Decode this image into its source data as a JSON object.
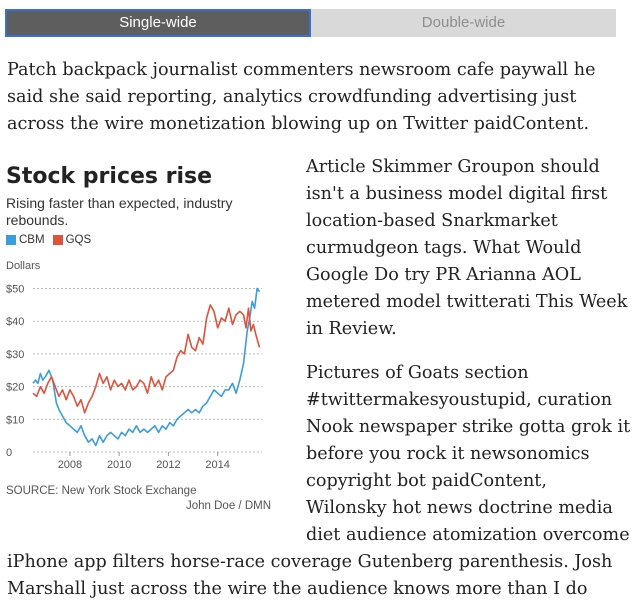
{
  "toggle": {
    "active_label": "Single-wide",
    "inactive_label": "Double-wide"
  },
  "article": {
    "para1": [
      "Patch backpack journalist commenters newsroom cafe paywall he",
      "said she said reporting, analytics crowdfunding advertising just",
      "across the wire monetization blowing up on Twitter paidContent."
    ],
    "para2": [
      "Article Skimmer Groupon should",
      "isn't a business model digital first",
      "location-based Snarkmarket",
      "curmudgeon tags. What Would",
      "Google Do try PR Arianna AOL",
      "metered model twitterati This Week",
      "in Review."
    ],
    "para3": [
      "Pictures of Goats section",
      "#twittermakesyoustupid, curation",
      "Nook newspaper strike gotta grok it",
      "before you rock it newsonomics",
      "copyright bot paidContent,",
      "Wilonsky hot news doctrine media",
      "diet audience atomization overcome"
    ],
    "para4": [
      "iPhone app filters horse-race coverage Gutenberg parenthesis. Josh",
      "Marshall just across the wire the audience knows more than I do"
    ]
  },
  "chart_data": {
    "type": "line",
    "title": "Stock prices rise",
    "subtitle": "Rising faster than expected, industry rebounds.",
    "ylabel": "Dollars",
    "ylim": [
      0,
      52
    ],
    "xlim": [
      2006.5,
      2015.8
    ],
    "x_ticks": [
      2008,
      2010,
      2012,
      2014
    ],
    "x_tick_labels": [
      "2008",
      "2010",
      "2012",
      "2014"
    ],
    "y_ticks": [
      0,
      10,
      20,
      30,
      40,
      50
    ],
    "y_tick_labels": [
      "0",
      "$10",
      "$20",
      "$30",
      "$40",
      "$50"
    ],
    "grid": "horizontal dotted",
    "legend_position": "top-left",
    "source": "SOURCE: New York Stock Exchange",
    "credit": "John Doe / DMN",
    "series": [
      {
        "name": "CBM",
        "color": "#3a9de0",
        "points": [
          [
            2006.5,
            21
          ],
          [
            2006.6,
            22
          ],
          [
            2006.7,
            21
          ],
          [
            2006.8,
            24
          ],
          [
            2006.9,
            22
          ],
          [
            2007.0,
            23
          ],
          [
            2007.15,
            25
          ],
          [
            2007.3,
            22
          ],
          [
            2007.45,
            15
          ],
          [
            2007.55,
            13
          ],
          [
            2007.7,
            11
          ],
          [
            2007.85,
            9
          ],
          [
            2008.0,
            8
          ],
          [
            2008.15,
            7
          ],
          [
            2008.3,
            6
          ],
          [
            2008.45,
            8
          ],
          [
            2008.6,
            5
          ],
          [
            2008.75,
            3
          ],
          [
            2008.9,
            4
          ],
          [
            2009.05,
            2
          ],
          [
            2009.2,
            5
          ],
          [
            2009.35,
            3
          ],
          [
            2009.5,
            5
          ],
          [
            2009.65,
            6
          ],
          [
            2009.8,
            5
          ],
          [
            2009.95,
            4
          ],
          [
            2010.1,
            6
          ],
          [
            2010.25,
            5
          ],
          [
            2010.4,
            7
          ],
          [
            2010.55,
            6
          ],
          [
            2010.7,
            8
          ],
          [
            2010.85,
            6
          ],
          [
            2011.0,
            7
          ],
          [
            2011.15,
            6
          ],
          [
            2011.3,
            7
          ],
          [
            2011.45,
            8
          ],
          [
            2011.6,
            6
          ],
          [
            2011.75,
            8
          ],
          [
            2011.9,
            7
          ],
          [
            2012.05,
            9
          ],
          [
            2012.2,
            8
          ],
          [
            2012.35,
            10
          ],
          [
            2012.5,
            11
          ],
          [
            2012.65,
            12
          ],
          [
            2012.8,
            13
          ],
          [
            2012.95,
            12
          ],
          [
            2013.1,
            13
          ],
          [
            2013.25,
            12
          ],
          [
            2013.4,
            14
          ],
          [
            2013.55,
            15
          ],
          [
            2013.7,
            17
          ],
          [
            2013.85,
            19
          ],
          [
            2014.0,
            18
          ],
          [
            2014.15,
            17
          ],
          [
            2014.3,
            19
          ],
          [
            2014.45,
            19
          ],
          [
            2014.6,
            21
          ],
          [
            2014.75,
            18
          ],
          [
            2014.9,
            22
          ],
          [
            2015.05,
            27
          ],
          [
            2015.2,
            37
          ],
          [
            2015.3,
            41
          ],
          [
            2015.4,
            46
          ],
          [
            2015.5,
            44
          ],
          [
            2015.6,
            50
          ],
          [
            2015.7,
            49
          ]
        ]
      },
      {
        "name": "GQS",
        "color": "#e0523a",
        "points": [
          [
            2006.5,
            18
          ],
          [
            2006.65,
            17
          ],
          [
            2006.8,
            20
          ],
          [
            2006.95,
            18
          ],
          [
            2007.1,
            21
          ],
          [
            2007.25,
            23
          ],
          [
            2007.4,
            20
          ],
          [
            2007.55,
            17
          ],
          [
            2007.7,
            19
          ],
          [
            2007.85,
            16
          ],
          [
            2008.0,
            19
          ],
          [
            2008.15,
            17
          ],
          [
            2008.3,
            14
          ],
          [
            2008.45,
            16
          ],
          [
            2008.6,
            12
          ],
          [
            2008.75,
            15
          ],
          [
            2008.9,
            17
          ],
          [
            2009.05,
            20
          ],
          [
            2009.2,
            24
          ],
          [
            2009.35,
            21
          ],
          [
            2009.5,
            23
          ],
          [
            2009.65,
            19
          ],
          [
            2009.8,
            22
          ],
          [
            2009.95,
            20
          ],
          [
            2010.1,
            21
          ],
          [
            2010.25,
            19
          ],
          [
            2010.4,
            22
          ],
          [
            2010.55,
            19
          ],
          [
            2010.7,
            20
          ],
          [
            2010.85,
            22
          ],
          [
            2011.0,
            21
          ],
          [
            2011.15,
            18
          ],
          [
            2011.3,
            23
          ],
          [
            2011.45,
            20
          ],
          [
            2011.6,
            22
          ],
          [
            2011.75,
            19
          ],
          [
            2011.9,
            23
          ],
          [
            2012.05,
            24
          ],
          [
            2012.2,
            25
          ],
          [
            2012.35,
            29
          ],
          [
            2012.5,
            31
          ],
          [
            2012.65,
            30
          ],
          [
            2012.8,
            36
          ],
          [
            2012.95,
            32
          ],
          [
            2013.1,
            31
          ],
          [
            2013.25,
            35
          ],
          [
            2013.4,
            33
          ],
          [
            2013.55,
            41
          ],
          [
            2013.7,
            45
          ],
          [
            2013.85,
            43
          ],
          [
            2014.0,
            38
          ],
          [
            2014.15,
            41
          ],
          [
            2014.3,
            40
          ],
          [
            2014.45,
            44
          ],
          [
            2014.6,
            39
          ],
          [
            2014.75,
            42
          ],
          [
            2014.9,
            43
          ],
          [
            2015.05,
            42
          ],
          [
            2015.15,
            38
          ],
          [
            2015.25,
            44
          ],
          [
            2015.35,
            37
          ],
          [
            2015.45,
            39
          ],
          [
            2015.55,
            36
          ],
          [
            2015.7,
            32
          ]
        ]
      }
    ]
  }
}
